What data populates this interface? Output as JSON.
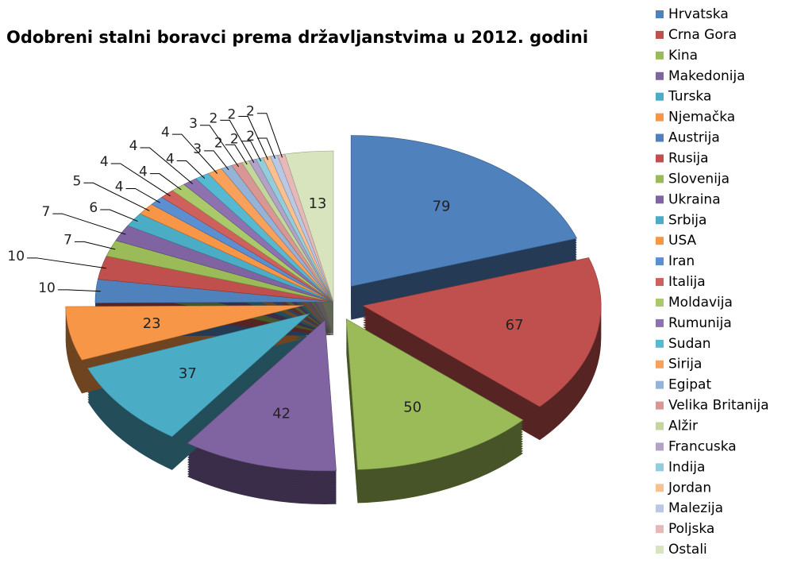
{
  "chart_data": {
    "type": "pie3d",
    "title": "Odobreni stalni boravci prema državljanstvima u 2012. godini",
    "categories": [
      "Hrvatska",
      "Crna Gora",
      "Kina",
      "Makedonija",
      "Turska",
      "Njemačka",
      "Austrija",
      "Rusija",
      "Slovenija",
      "Ukraina",
      "Srbija",
      "USA",
      "Iran",
      "Italija",
      "Moldavija",
      "Rumunija",
      "Sudan",
      "Sirija",
      "Egipat",
      "Velika Britanija",
      "Alžir",
      "Francuska",
      "Indija",
      "Jordan",
      "Malezija",
      "Poljska",
      "Ostali"
    ],
    "values": [
      79,
      67,
      50,
      42,
      37,
      23,
      10,
      10,
      7,
      7,
      6,
      5,
      4,
      4,
      4,
      4,
      4,
      4,
      3,
      3,
      2,
      2,
      2,
      2,
      2,
      2,
      13
    ],
    "colors": [
      "#4F81BD",
      "#C0504D",
      "#9BBB59",
      "#8064A2",
      "#4BACC6",
      "#F79646",
      "#4F81BD",
      "#C0504D",
      "#9BBB59",
      "#8064A2",
      "#4BACC6",
      "#F79646",
      "#5B8FD0",
      "#D0605C",
      "#A9C96A",
      "#8E72B0",
      "#57B8D2",
      "#F9A05A",
      "#95B3D7",
      "#D99694",
      "#C3D69B",
      "#B3A2C7",
      "#93CDDD",
      "#FAC090",
      "#B9C9E5",
      "#E6B9B8",
      "#D7E4BD"
    ],
    "legend": "right"
  }
}
